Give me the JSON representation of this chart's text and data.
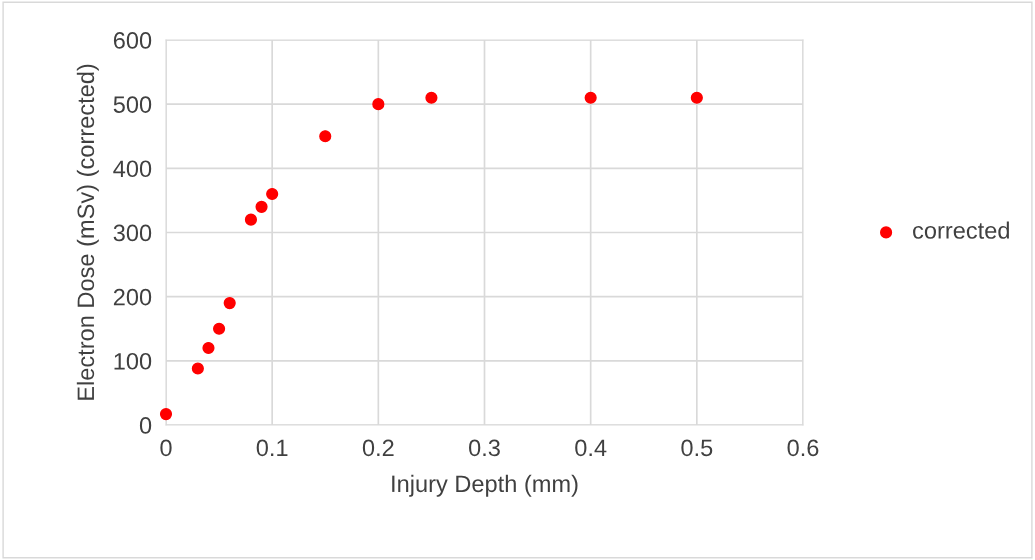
{
  "chart_data": {
    "type": "scatter",
    "xlabel": "Injury Depth (mm)",
    "ylabel": "Electron Dose (mSv) (corrected)",
    "x": [
      0,
      0.03,
      0.04,
      0.05,
      0.06,
      0.08,
      0.09,
      0.1,
      0.15,
      0.2,
      0.25,
      0.4,
      0.5
    ],
    "series": [
      {
        "name": "corrected",
        "color": "#ff0000",
        "values": [
          17,
          88,
          120,
          150,
          190,
          320,
          340,
          360,
          450,
          500,
          510,
          510,
          510
        ]
      }
    ],
    "xlim": [
      0,
      0.6
    ],
    "xticks": [
      0,
      0.1,
      0.2,
      0.3,
      0.4,
      0.5,
      0.6
    ],
    "ylim": [
      0,
      600
    ],
    "yticks": [
      0,
      100,
      200,
      300,
      400,
      500,
      600
    ],
    "grid": true,
    "legend": "right",
    "marker": "circle"
  }
}
